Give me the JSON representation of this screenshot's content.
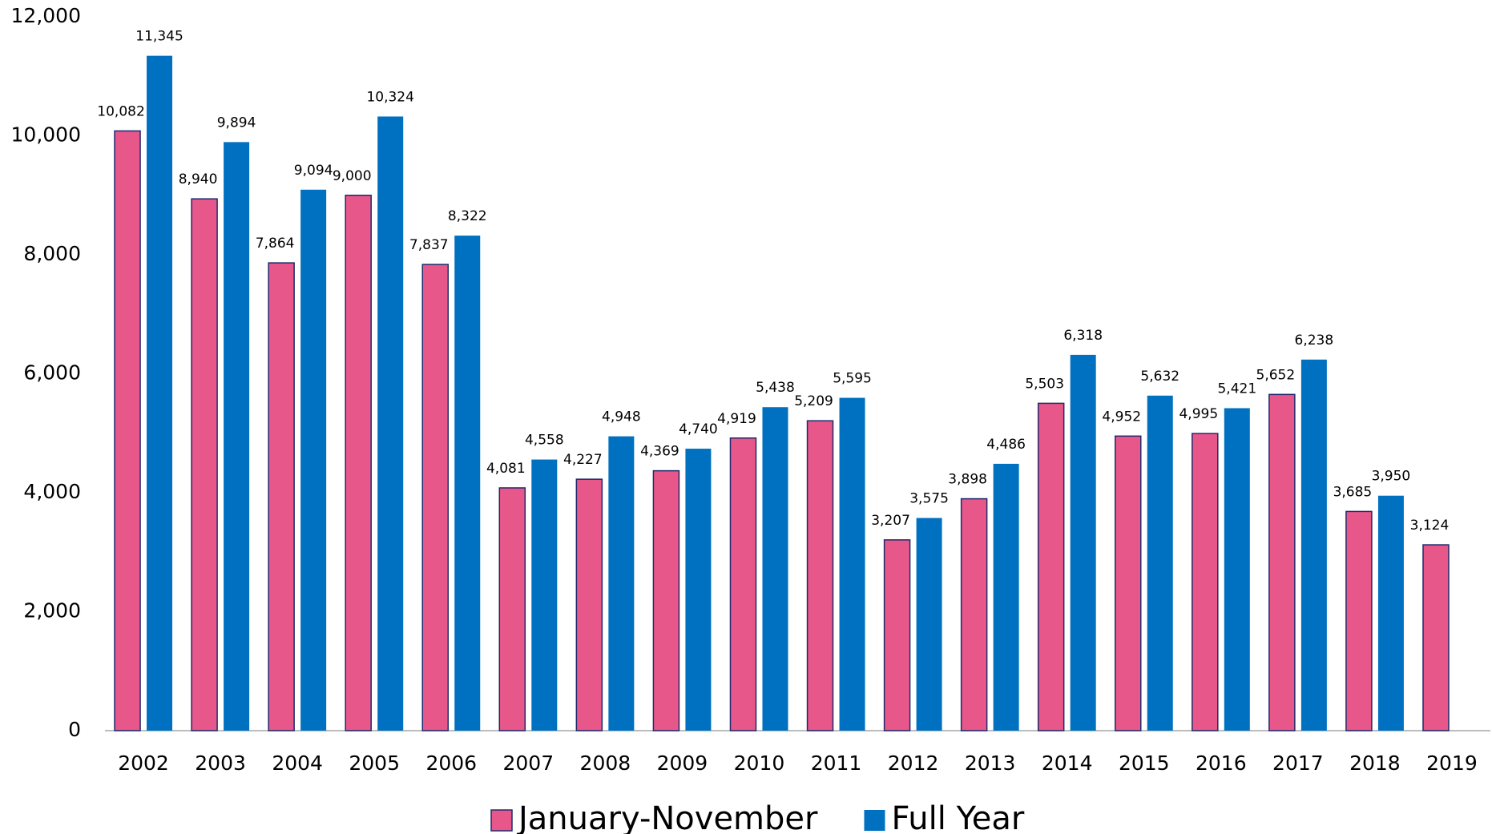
{
  "chart_data": {
    "type": "bar",
    "categories": [
      "2002",
      "2003",
      "2004",
      "2005",
      "2006",
      "2007",
      "2008",
      "2009",
      "2010",
      "2011",
      "2012",
      "2013",
      "2014",
      "2015",
      "2016",
      "2017",
      "2018",
      "2019"
    ],
    "series": [
      {
        "name": "January-November",
        "color": "#e8578a",
        "values": [
          10082,
          8940,
          7864,
          9000,
          7837,
          4081,
          4227,
          4369,
          4919,
          5209,
          3207,
          3898,
          5503,
          4952,
          4995,
          5652,
          3685,
          3124
        ],
        "value_labels": [
          "10,082",
          "8,940",
          "7,864",
          "9,000",
          "7,837",
          "4,081",
          "4,227",
          "4,369",
          "4,919",
          "5,209",
          "3,207",
          "3,898",
          "5,503",
          "4,952",
          "4,995",
          "5,652",
          "3,685",
          "3,124"
        ]
      },
      {
        "name": "Full Year",
        "color": "#0070c0",
        "values": [
          11345,
          9894,
          9094,
          10324,
          8322,
          4558,
          4948,
          4740,
          5438,
          5595,
          3575,
          4486,
          6318,
          5632,
          5421,
          6238,
          3950,
          null
        ],
        "value_labels": [
          "11,345",
          "9,894",
          "9,094",
          "10,324",
          "8,322",
          "4,558",
          "4,948",
          "4,740",
          "5,438",
          "5,595",
          "3,575",
          "4,486",
          "6,318",
          "5,632",
          "5,421",
          "6,238",
          "3,950",
          null
        ]
      }
    ],
    "ylim": [
      0,
      12000
    ],
    "yticks": [
      0,
      {
        "value": 2000,
        "label": "2,000"
      },
      {
        "value": 4000,
        "label": "4,000"
      },
      {
        "value": 6000,
        "label": "6,000"
      },
      {
        "value": 8000,
        "label": "8,000"
      },
      {
        "value": 10000,
        "label": "10,000"
      },
      {
        "value": 12000,
        "label": "12,000"
      }
    ],
    "grid": false,
    "legend": "bottom"
  }
}
